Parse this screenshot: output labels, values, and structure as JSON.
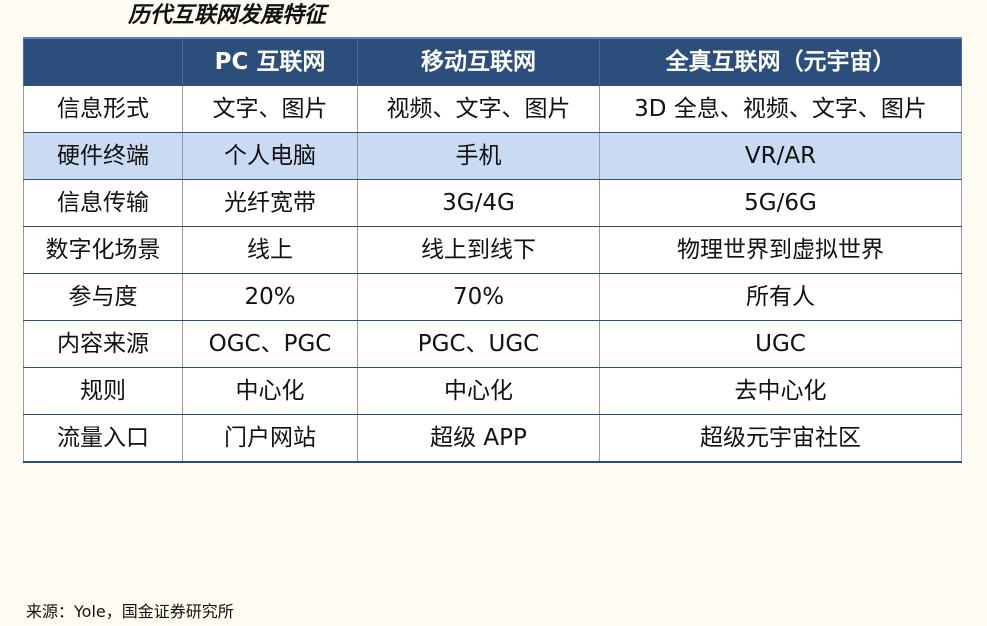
{
  "title": "历代互联网发展特征",
  "table": {
    "headers": [
      "",
      "PC 互联网",
      "移动互联网",
      "全真互联网（元宇宙）"
    ],
    "rows": [
      [
        "信息形式",
        "文字、图片",
        "视频、文字、图片",
        "3D 全息、视频、文字、图片"
      ],
      [
        "硬件终端",
        "个人电脑",
        "手机",
        "VR/AR"
      ],
      [
        "信息传输",
        "光纤宽带",
        "3G/4G",
        "5G/6G"
      ],
      [
        "数字化场景",
        "线上",
        "线上到线下",
        "物理世界到虚拟世界"
      ],
      [
        "参与度",
        "20%",
        "70%",
        "所有人"
      ],
      [
        "内容来源",
        "OGC、PGC",
        "PGC、UGC",
        "UGC"
      ],
      [
        "规则",
        "中心化",
        "中心化",
        "去中心化"
      ],
      [
        "流量入口",
        "门户网站",
        "超级 APP",
        "超级元宇宙社区"
      ]
    ],
    "shaded_row_index": 1,
    "colors": {
      "header_bg": "#2b4e7c",
      "header_text": "#ffffff",
      "shaded_row_bg": "#c9daf2",
      "page_bg": "#fffdf3"
    }
  },
  "source": "来源：Yole，国金证券研究所"
}
